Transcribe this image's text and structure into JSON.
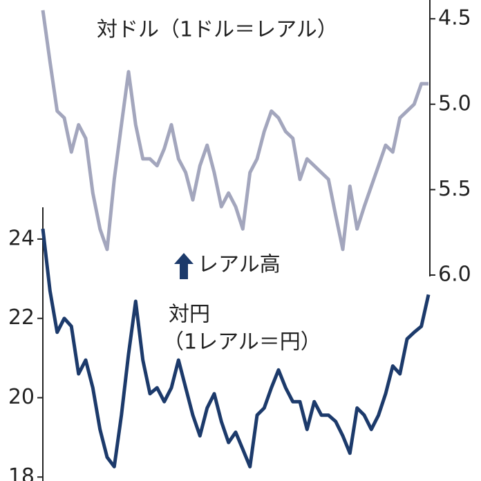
{
  "chart_data": {
    "type": "line",
    "annotations": [
      "対ドル（1ドル＝レアル）",
      "レアル高",
      "対円",
      "（1レアル＝円）"
    ],
    "series": [
      {
        "name": "対ドル",
        "color": "#a3a6bd",
        "axis": "y2",
        "values": [
          4.45,
          4.75,
          5.04,
          5.08,
          5.28,
          5.12,
          5.2,
          5.52,
          5.73,
          5.85,
          5.44,
          5.12,
          4.81,
          5.12,
          5.32,
          5.32,
          5.36,
          5.26,
          5.12,
          5.32,
          5.4,
          5.56,
          5.36,
          5.24,
          5.4,
          5.6,
          5.52,
          5.6,
          5.73,
          5.4,
          5.32,
          5.16,
          5.04,
          5.08,
          5.16,
          5.2,
          5.44,
          5.32,
          5.36,
          5.4,
          5.44,
          5.65,
          5.85,
          5.48,
          5.73,
          5.6,
          5.48,
          5.36,
          5.24,
          5.28,
          5.08,
          5.04,
          5.0,
          4.88,
          4.88
        ]
      },
      {
        "name": "対円",
        "color": "#1c3a6b",
        "values": [
          24.26,
          22.7,
          21.65,
          22.0,
          21.8,
          20.6,
          20.95,
          20.25,
          19.2,
          18.5,
          18.26,
          19.56,
          21.1,
          22.43,
          20.95,
          20.1,
          20.25,
          19.9,
          20.25,
          20.95,
          20.25,
          19.56,
          19.04,
          19.74,
          20.1,
          19.4,
          18.87,
          19.13,
          18.7,
          18.26,
          19.56,
          19.74,
          20.25,
          20.7,
          20.25,
          19.9,
          19.9,
          19.2,
          19.9,
          19.56,
          19.56,
          19.4,
          19.04,
          18.6,
          19.74,
          19.56,
          19.2,
          19.56,
          20.1,
          20.8,
          20.6,
          21.48,
          21.65,
          21.8,
          22.6
        ]
      }
    ],
    "ylim": [
      17.9,
      24.8
    ],
    "yticks": [
      18,
      20,
      22,
      24
    ],
    "y2lim": [
      4.39,
      6.0
    ],
    "y2ticks": [
      4.5,
      {
        "value": 5,
        "label": "5.0"
      },
      5.5,
      {
        "value": 6,
        "label": "6.0"
      }
    ],
    "y2_inverted": true
  }
}
